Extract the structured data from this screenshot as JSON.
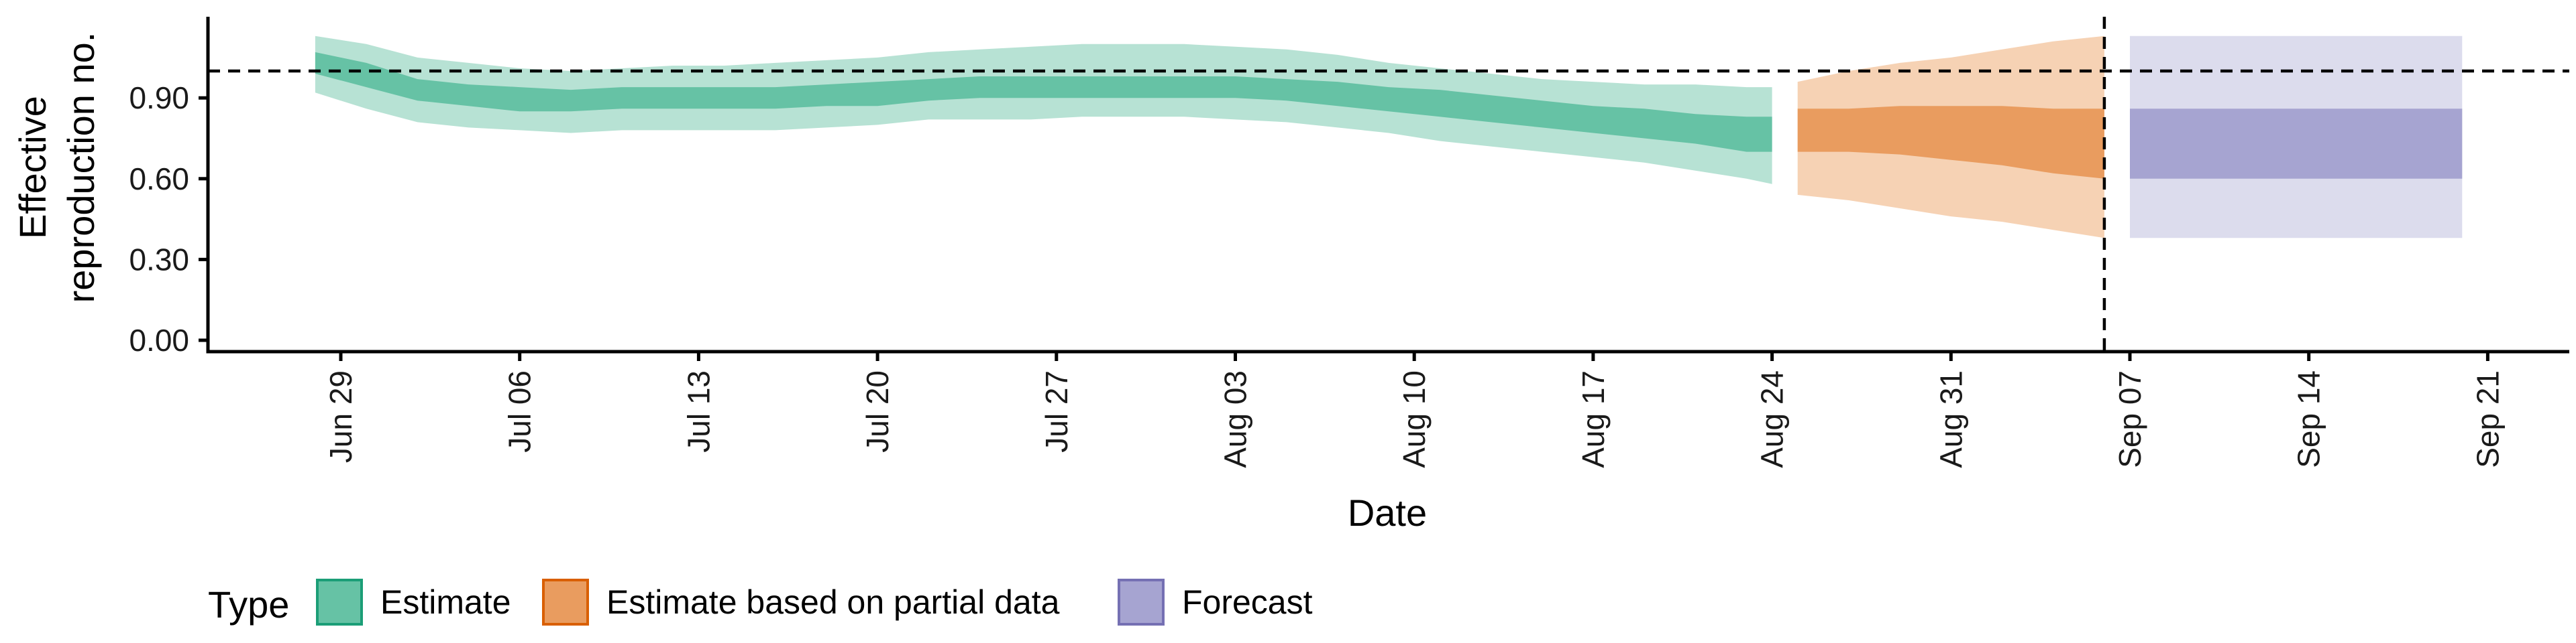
{
  "chart_data": {
    "type": "area",
    "xlabel": "Date",
    "ylabel_lines": [
      "Effective",
      "reproduction no."
    ],
    "ylim": [
      0,
      1.15
    ],
    "y_ticks": [
      "0.00",
      "0.30",
      "0.60",
      "0.90"
    ],
    "y_tick_values": [
      0.0,
      0.3,
      0.6,
      0.9
    ],
    "x_ticks": [
      "Jun 29",
      "Jul 06",
      "Jul 13",
      "Jul 20",
      "Jul 27",
      "Aug 03",
      "Aug 10",
      "Aug 17",
      "Aug 24",
      "Aug 31",
      "Sep 07",
      "Sep 14",
      "Sep 21"
    ],
    "x_tick_dates": [
      "2020-06-29",
      "2020-07-06",
      "2020-07-13",
      "2020-07-20",
      "2020-07-27",
      "2020-08-03",
      "2020-08-10",
      "2020-08-17",
      "2020-08-24",
      "2020-08-31",
      "2020-09-07",
      "2020-09-14",
      "2020-09-21"
    ],
    "reference_line_y": 1.0,
    "vertical_line_date": "2020-09-06",
    "series": [
      {
        "name": "Estimate",
        "color": "#66C2A5",
        "outer_color": "#B7E2D4",
        "x": [
          "2020-06-28",
          "2020-06-30",
          "2020-07-02",
          "2020-07-04",
          "2020-07-06",
          "2020-07-08",
          "2020-07-10",
          "2020-07-12",
          "2020-07-14",
          "2020-07-16",
          "2020-07-18",
          "2020-07-20",
          "2020-07-22",
          "2020-07-24",
          "2020-07-26",
          "2020-07-28",
          "2020-07-30",
          "2020-08-01",
          "2020-08-03",
          "2020-08-05",
          "2020-08-07",
          "2020-08-09",
          "2020-08-11",
          "2020-08-13",
          "2020-08-15",
          "2020-08-17",
          "2020-08-19",
          "2020-08-21",
          "2020-08-23",
          "2020-08-24"
        ],
        "lower90": [
          0.92,
          0.86,
          0.81,
          0.79,
          0.78,
          0.77,
          0.78,
          0.78,
          0.78,
          0.78,
          0.79,
          0.8,
          0.82,
          0.82,
          0.82,
          0.83,
          0.83,
          0.83,
          0.82,
          0.81,
          0.79,
          0.77,
          0.74,
          0.72,
          0.7,
          0.68,
          0.66,
          0.63,
          0.6,
          0.58
        ],
        "lower50": [
          0.99,
          0.94,
          0.89,
          0.87,
          0.85,
          0.85,
          0.86,
          0.86,
          0.86,
          0.86,
          0.87,
          0.87,
          0.89,
          0.9,
          0.9,
          0.9,
          0.9,
          0.9,
          0.9,
          0.89,
          0.87,
          0.85,
          0.83,
          0.81,
          0.79,
          0.77,
          0.75,
          0.73,
          0.7,
          0.7
        ],
        "upper50": [
          1.07,
          1.03,
          0.97,
          0.95,
          0.94,
          0.93,
          0.94,
          0.94,
          0.94,
          0.94,
          0.95,
          0.96,
          0.97,
          0.98,
          0.98,
          0.98,
          0.98,
          0.98,
          0.98,
          0.97,
          0.96,
          0.94,
          0.93,
          0.91,
          0.89,
          0.87,
          0.86,
          0.84,
          0.83,
          0.83
        ],
        "upper90": [
          1.13,
          1.1,
          1.05,
          1.03,
          1.01,
          1.0,
          1.01,
          1.02,
          1.02,
          1.03,
          1.04,
          1.05,
          1.07,
          1.08,
          1.09,
          1.1,
          1.1,
          1.1,
          1.09,
          1.08,
          1.06,
          1.03,
          1.01,
          0.99,
          0.97,
          0.96,
          0.95,
          0.95,
          0.94,
          0.94
        ]
      },
      {
        "name": "Estimate based on partial data",
        "color": "#E99C5F",
        "outer_color": "#F6D2B4",
        "x": [
          "2020-08-25",
          "2020-08-27",
          "2020-08-29",
          "2020-08-31",
          "2020-09-02",
          "2020-09-04",
          "2020-09-06"
        ],
        "lower90": [
          0.54,
          0.52,
          0.49,
          0.46,
          0.44,
          0.41,
          0.38
        ],
        "lower50": [
          0.7,
          0.7,
          0.69,
          0.67,
          0.65,
          0.62,
          0.6
        ],
        "upper50": [
          0.86,
          0.86,
          0.87,
          0.87,
          0.87,
          0.86,
          0.86
        ],
        "upper90": [
          0.96,
          1.0,
          1.03,
          1.05,
          1.08,
          1.11,
          1.13
        ]
      },
      {
        "name": "Forecast",
        "color": "#A6A4D1",
        "outer_color": "#DCDCED",
        "x": [
          "2020-09-07",
          "2020-09-20"
        ],
        "lower90": [
          0.38,
          0.38
        ],
        "lower50": [
          0.6,
          0.6
        ],
        "upper50": [
          0.86,
          0.86
        ],
        "upper90": [
          1.13,
          1.13
        ]
      }
    ],
    "legend": {
      "title": "Type",
      "position": "bottom-left",
      "items": [
        {
          "label": "Estimate",
          "fill": "#66C2A5",
          "stroke": "#1B9E77"
        },
        {
          "label": "Estimate based on partial data",
          "fill": "#E99C5F",
          "stroke": "#D95F02"
        },
        {
          "label": "Forecast",
          "fill": "#A6A4D1",
          "stroke": "#7570B3"
        }
      ]
    }
  }
}
